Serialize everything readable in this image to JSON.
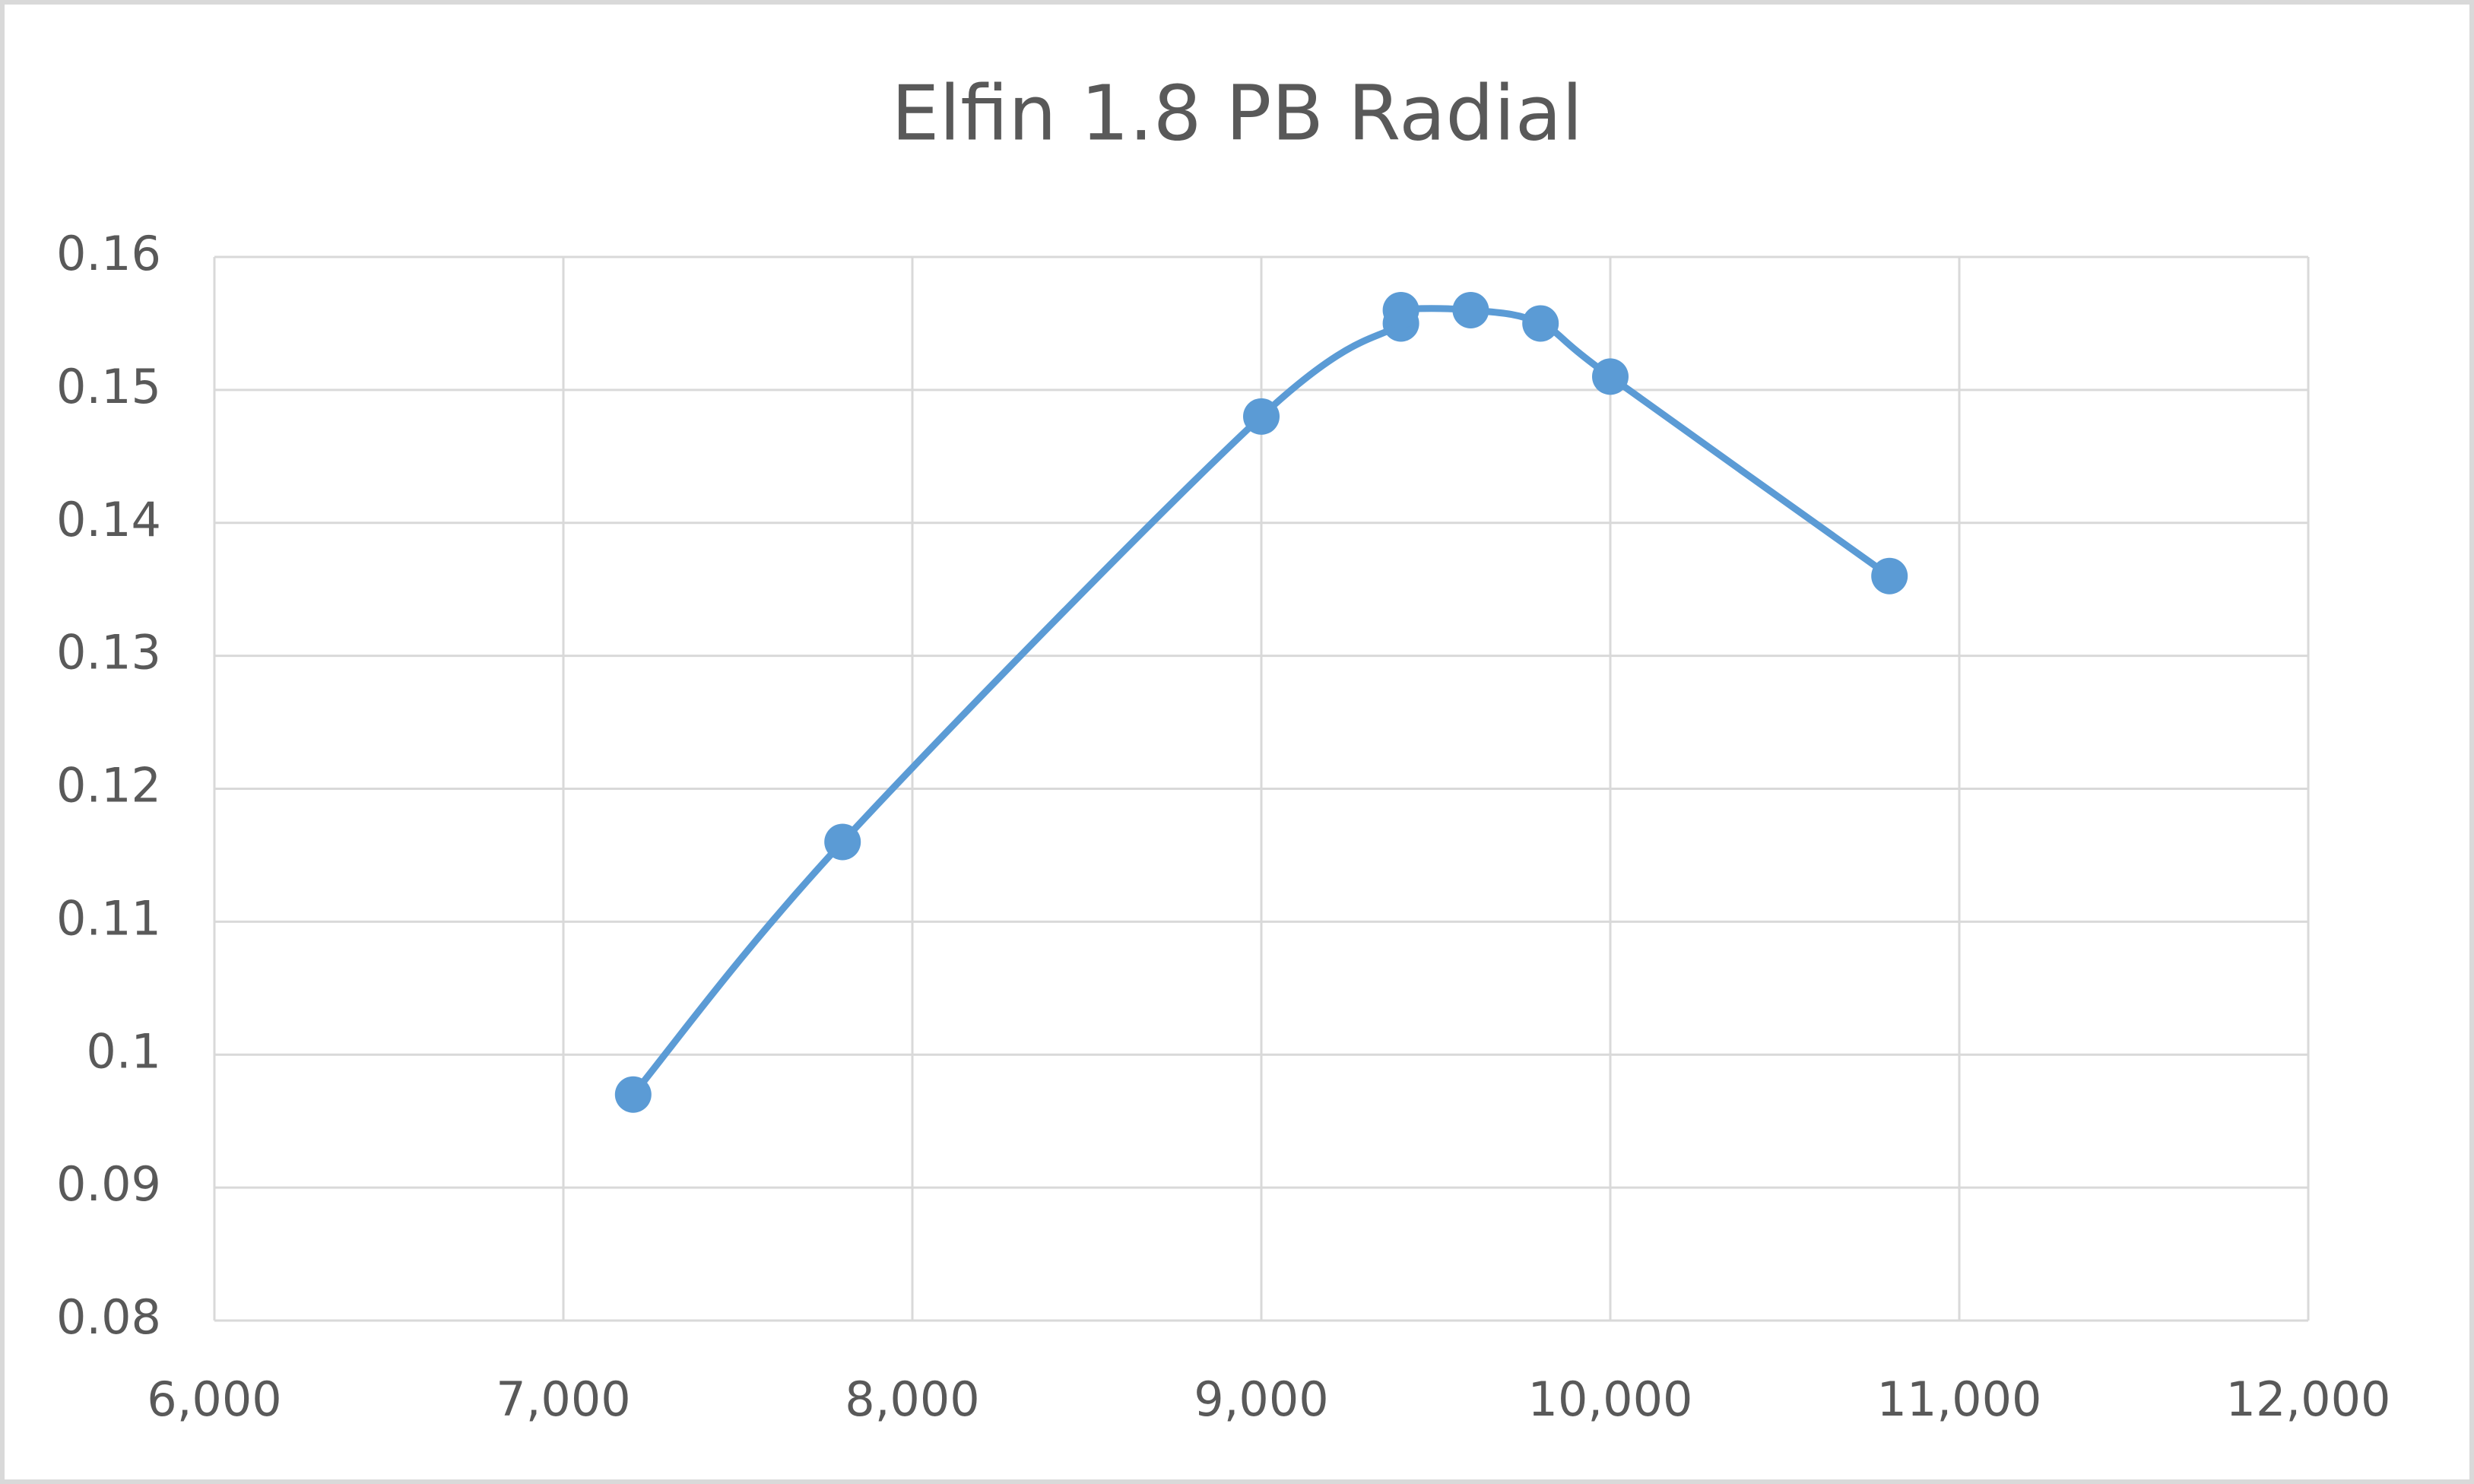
{
  "chart_data": {
    "type": "line",
    "title": "Elfin 1.8 PB Radial",
    "x": [
      7200,
      7800,
      9000,
      9400,
      9400,
      9600,
      9800,
      10000,
      10800
    ],
    "values": [
      0.097,
      0.116,
      0.148,
      0.155,
      0.156,
      0.156,
      0.155,
      0.151,
      0.136
    ],
    "color": "#5b9bd5",
    "smooth": true,
    "markers": true,
    "grid": true,
    "xlim": [
      6000,
      12000
    ],
    "xticks": [
      {
        "value": 6000,
        "label": "6,000"
      },
      {
        "value": 7000,
        "label": "7,000"
      },
      {
        "value": 8000,
        "label": "8,000"
      },
      {
        "value": 9000,
        "label": "9,000"
      },
      {
        "value": 10000,
        "label": "10,000"
      },
      {
        "value": 11000,
        "label": "11,000"
      },
      {
        "value": 12000,
        "label": "12,000"
      }
    ],
    "ylim": [
      0.08,
      0.16
    ],
    "yticks": [
      0.08,
      0.09,
      0.1,
      0.11,
      0.12,
      0.13,
      0.14,
      0.15,
      0.16
    ]
  }
}
